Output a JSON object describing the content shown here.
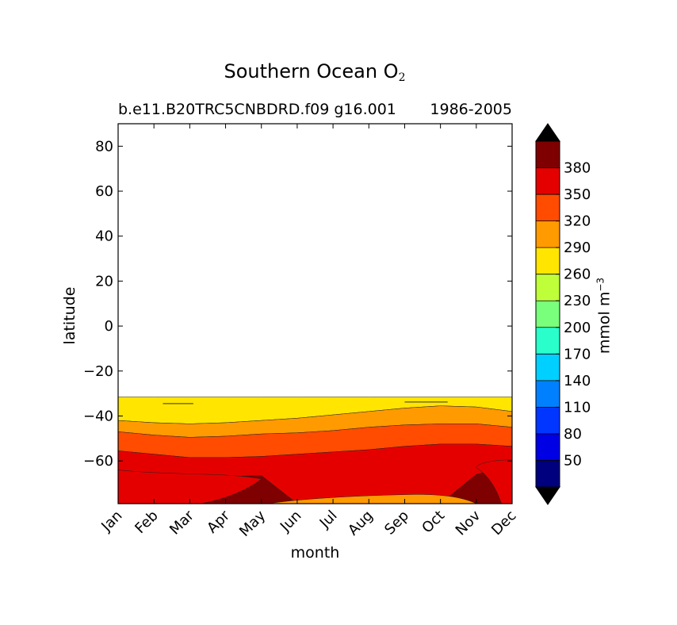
{
  "title": {
    "main": "Southern Ocean O",
    "main_subscript": "2",
    "left": "b.e11.B20TRC5CNBDRD.f09 g16.001",
    "right": "1986-2005"
  },
  "colorbar_label": {
    "text": "mmol m",
    "superscript": "−3"
  },
  "chart_data": {
    "type": "contour",
    "title": "Southern Ocean O2",
    "xlabel": "month",
    "ylabel": "latitude",
    "x_categories": [
      "Jan",
      "Feb",
      "Mar",
      "Apr",
      "May",
      "Jun",
      "Jul",
      "Aug",
      "Sep",
      "Oct",
      "Nov",
      "Dec"
    ],
    "ylim": [
      -79,
      90
    ],
    "yticks": [
      80,
      60,
      40,
      20,
      0,
      -20,
      -40,
      -60
    ],
    "ytick_labels": [
      "80",
      "60",
      "40",
      "20",
      "0",
      "−20",
      "−40",
      "−60"
    ],
    "colorbar": {
      "levels": [
        20,
        50,
        80,
        110,
        140,
        170,
        200,
        230,
        260,
        290,
        320,
        350,
        380,
        410
      ],
      "tick_labels": [
        "50",
        "80",
        "110",
        "140",
        "170",
        "200",
        "230",
        "260",
        "290",
        "320",
        "350",
        "380"
      ],
      "colors": [
        "#00007f",
        "#0000e5",
        "#0036ff",
        "#0080ff",
        "#00d0ff",
        "#2affcc",
        "#7aff7d",
        "#bfff39",
        "#ffe500",
        "#ff9a00",
        "#ff4c00",
        "#e50000",
        "#7f0000"
      ],
      "extend": "both",
      "under_color": "#000000",
      "over_color": "#000000"
    },
    "contour_boundaries": [
      {
        "level": 260,
        "lat": [
          -31.5,
          -31.5,
          -31.5,
          -31.5,
          -31.5,
          -31.5,
          -31.5,
          -31.5,
          -31.5,
          -31.5,
          -31.5,
          -31.5
        ]
      },
      {
        "level": 290,
        "lat": [
          -42,
          -43,
          -43.5,
          -43,
          -42,
          -41,
          -39.5,
          -38,
          -36.5,
          -35.5,
          -36,
          -38
        ]
      },
      {
        "level": 320,
        "lat": [
          -47,
          -48.5,
          -49.5,
          -49,
          -48,
          -47.5,
          -46.5,
          -45,
          -44,
          -43.5,
          -43.5,
          -45
        ]
      },
      {
        "level": 350,
        "lat": [
          -55.5,
          -57,
          -58.5,
          -58.5,
          -58,
          -57,
          -56,
          -55,
          -53.5,
          -52.5,
          -52.5,
          -53.5
        ]
      },
      {
        "level": 380,
        "lat": [
          -64,
          -66,
          -67,
          -67,
          -66.5,
          -79,
          -79,
          -79,
          -79,
          -79,
          -66,
          -62
        ]
      }
    ],
    "ocean_data_extent": {
      "lat_top": -31.5,
      "lat_bottom": -79
    }
  }
}
